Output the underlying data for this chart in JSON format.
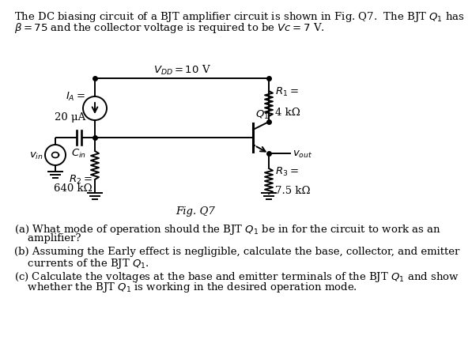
{
  "title_line1": "The DC biasing circuit of a BJT amplifier circuit is shown in Fig. Q7.  The BJT $Q_1$ has",
  "title_line2": "$\\beta = 75$ and the collector voltage is required to be $Vc = 7$ V.",
  "fig_label": "Fig. Q7",
  "vdd_label": "$V_{DD} = 10$ V",
  "IA_label_line1": "$I_A =$",
  "IA_label_line2": "20 μA",
  "R1_label_line1": "$R_1 =$",
  "R1_label_line2": "4 kΩ",
  "R2_label_line1": "$R_2 =$",
  "R2_label_line2": "640 kΩ",
  "R3_label_line1": "$R_3 =$",
  "R3_label_line2": "7.5 kΩ",
  "Cin_label": "$C_{in}$",
  "Q1_label": "$Q_1$",
  "vin_label": "$v_{in}$",
  "vout_label": "$v_{out}$",
  "qa_text_line1": "(a) What mode of operation should the BJT $Q_1$ be in for the circuit to work as an",
  "qa_text_line2": "    amplifier?",
  "qb_text_line1": "(b) Assuming the Early effect is negligible, calculate the base, collector, and emitter",
  "qb_text_line2": "    currents of the BJT $Q_1$.",
  "qc_text_line1": "(c) Calculate the voltages at the base and emitter terminals of the BJT $Q_1$ and show",
  "qc_text_line2": "    whether the BJT $Q_1$ is working in the desired operation mode.",
  "bg_color": "#ffffff",
  "text_color": "#000000",
  "line_color": "#000000",
  "fontsize": 9.5,
  "circuit_fontsize": 9.5
}
